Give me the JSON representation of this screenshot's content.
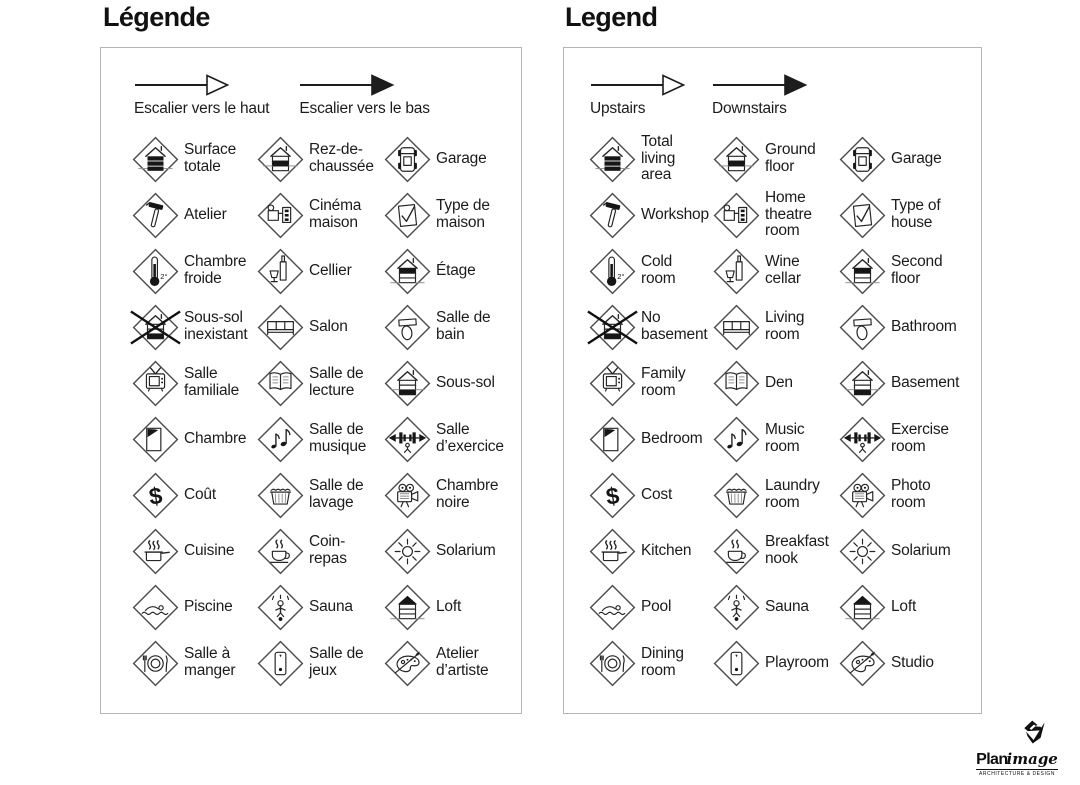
{
  "panels": [
    {
      "id": "french",
      "title": "Légende",
      "arrows": [
        {
          "icon": "stairs-up-arrow-icon",
          "head": "hollow",
          "label": "Escalier vers le haut"
        },
        {
          "icon": "stairs-down-arrow-icon",
          "head": "solid",
          "label": "Escalier vers le bas"
        }
      ],
      "items": [
        {
          "icon": "total-living-area-icon",
          "label": "Surface\ntotale"
        },
        {
          "icon": "ground-floor-icon",
          "label": "Rez-de-\nchaussée"
        },
        {
          "icon": "garage-icon",
          "label": "Garage"
        },
        {
          "icon": "workshop-icon",
          "label": "Atelier"
        },
        {
          "icon": "home-theatre-icon",
          "label": "Cinéma\nmaison"
        },
        {
          "icon": "type-of-house-icon",
          "label": "Type de\nmaison"
        },
        {
          "icon": "cold-room-icon",
          "label": "Chambre\nfroide"
        },
        {
          "icon": "wine-cellar-icon",
          "label": "Cellier"
        },
        {
          "icon": "second-floor-icon",
          "label": "Étage"
        },
        {
          "icon": "no-basement-icon",
          "label": "Sous-sol\ninexistant"
        },
        {
          "icon": "living-room-icon",
          "label": "Salon"
        },
        {
          "icon": "bathroom-icon",
          "label": "Salle de\nbain"
        },
        {
          "icon": "family-room-icon",
          "label": "Salle\nfamiliale"
        },
        {
          "icon": "den-icon",
          "label": "Salle de\nlecture"
        },
        {
          "icon": "basement-icon",
          "label": "Sous-sol"
        },
        {
          "icon": "bedroom-icon",
          "label": "Chambre"
        },
        {
          "icon": "music-room-icon",
          "label": "Salle de\nmusique"
        },
        {
          "icon": "exercise-room-icon",
          "label": "Salle\nd’exercice"
        },
        {
          "icon": "cost-icon",
          "label": "Coût"
        },
        {
          "icon": "laundry-room-icon",
          "label": "Salle de\nlavage"
        },
        {
          "icon": "photo-room-icon",
          "label": "Chambre\nnoire"
        },
        {
          "icon": "kitchen-icon",
          "label": "Cuisine"
        },
        {
          "icon": "breakfast-nook-icon",
          "label": "Coin-\nrepas"
        },
        {
          "icon": "solarium-icon",
          "label": "Solarium"
        },
        {
          "icon": "pool-icon",
          "label": "Piscine"
        },
        {
          "icon": "sauna-icon",
          "label": "Sauna"
        },
        {
          "icon": "loft-icon",
          "label": "Loft"
        },
        {
          "icon": "dining-room-icon",
          "label": "Salle à\nmanger"
        },
        {
          "icon": "playroom-icon",
          "label": "Salle de\njeux"
        },
        {
          "icon": "studio-icon",
          "label": "Atelier\nd’artiste"
        }
      ]
    },
    {
      "id": "english",
      "title": "Legend",
      "arrows": [
        {
          "icon": "stairs-up-arrow-icon",
          "head": "hollow",
          "label": "Upstairs"
        },
        {
          "icon": "stairs-down-arrow-icon",
          "head": "solid",
          "label": "Downstairs"
        }
      ],
      "items": [
        {
          "icon": "total-living-area-icon",
          "label": "Total\nliving\narea"
        },
        {
          "icon": "ground-floor-icon",
          "label": "Ground\nfloor"
        },
        {
          "icon": "garage-icon",
          "label": "Garage"
        },
        {
          "icon": "workshop-icon",
          "label": "Workshop"
        },
        {
          "icon": "home-theatre-icon",
          "label": "Home\ntheatre\nroom"
        },
        {
          "icon": "type-of-house-icon",
          "label": "Type of\nhouse"
        },
        {
          "icon": "cold-room-icon",
          "label": "Cold\nroom"
        },
        {
          "icon": "wine-cellar-icon",
          "label": "Wine\ncellar"
        },
        {
          "icon": "second-floor-icon",
          "label": "Second\nfloor"
        },
        {
          "icon": "no-basement-icon",
          "label": "No\nbasement"
        },
        {
          "icon": "living-room-icon",
          "label": "Living\nroom"
        },
        {
          "icon": "bathroom-icon",
          "label": "Bathroom"
        },
        {
          "icon": "family-room-icon",
          "label": "Family\nroom"
        },
        {
          "icon": "den-icon",
          "label": "Den"
        },
        {
          "icon": "basement-icon",
          "label": "Basement"
        },
        {
          "icon": "bedroom-icon",
          "label": "Bedroom"
        },
        {
          "icon": "music-room-icon",
          "label": "Music\nroom"
        },
        {
          "icon": "exercise-room-icon",
          "label": "Exercise\nroom"
        },
        {
          "icon": "cost-icon",
          "label": "Cost"
        },
        {
          "icon": "laundry-room-icon",
          "label": "Laundry\nroom"
        },
        {
          "icon": "photo-room-icon",
          "label": "Photo\nroom"
        },
        {
          "icon": "kitchen-icon",
          "label": "Kitchen"
        },
        {
          "icon": "breakfast-nook-icon",
          "label": "Breakfast\nnook"
        },
        {
          "icon": "solarium-icon",
          "label": "Solarium"
        },
        {
          "icon": "pool-icon",
          "label": "Pool"
        },
        {
          "icon": "sauna-icon",
          "label": "Sauna"
        },
        {
          "icon": "loft-icon",
          "label": "Loft"
        },
        {
          "icon": "dining-room-icon",
          "label": "Dining\nroom"
        },
        {
          "icon": "playroom-icon",
          "label": "Playroom"
        },
        {
          "icon": "studio-icon",
          "label": "Studio"
        }
      ]
    }
  ],
  "logo": {
    "brand_bold": "Plan",
    "brand_italic": "image",
    "tagline": "ARCHITECTURE & DESIGN"
  },
  "colors": {
    "background": "#ffffff",
    "text": "#1c1c1c",
    "panel_border": "#b5b5b5",
    "icon_stroke": "#262626",
    "icon_fill": "#161616"
  }
}
